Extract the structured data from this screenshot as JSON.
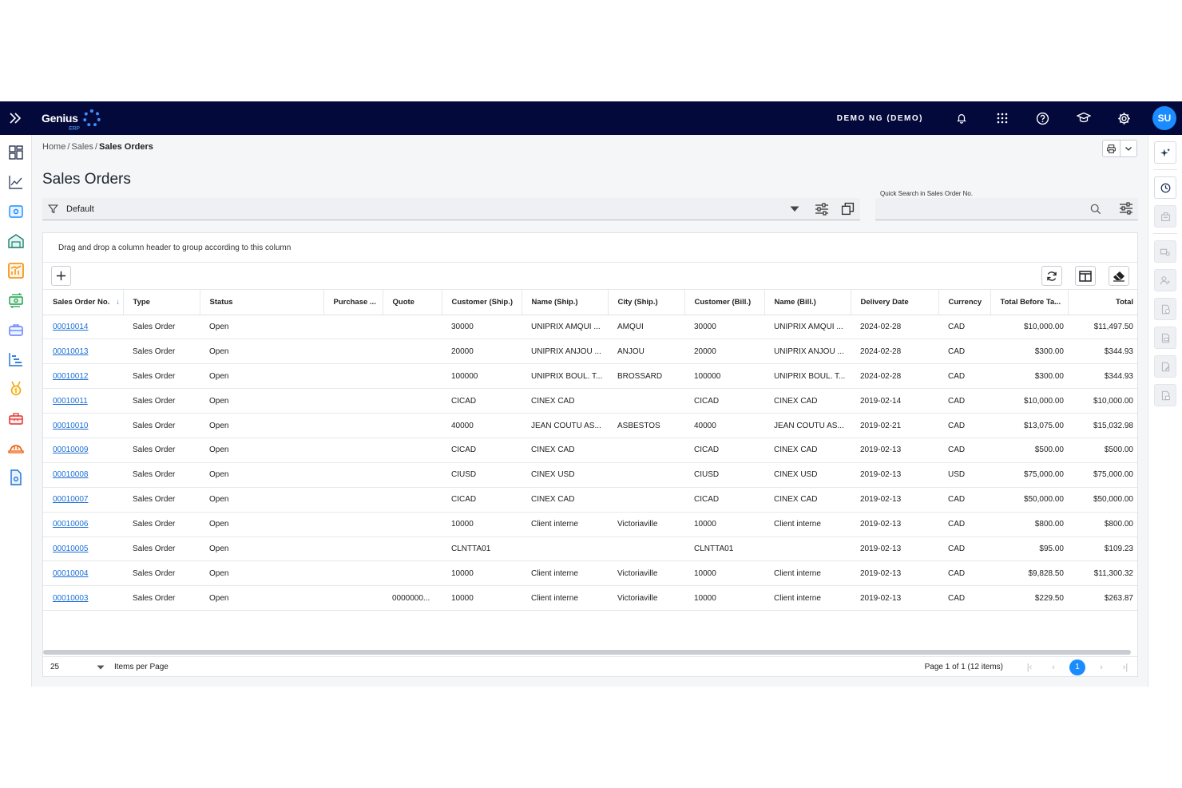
{
  "header": {
    "logo_text": "Genius",
    "logo_sub": "ERP",
    "company": "DEMO NG (DEMO)",
    "avatar_initials": "SU"
  },
  "breadcrumb": {
    "home": "Home",
    "sep1": "/",
    "sales": "Sales",
    "sep2": "/",
    "current": "Sales Orders"
  },
  "page_title": "Sales Orders",
  "filter": {
    "value": "Default"
  },
  "quick_search": {
    "label": "Quick Search in Sales Order No.",
    "value": ""
  },
  "grid": {
    "group_hint": "Drag and drop a column header to group according to this column",
    "columns": [
      "Sales Order No.",
      "Type",
      "Status",
      "Purchase ...",
      "Quote",
      "Customer (Ship.)",
      "Name (Ship.)",
      "City (Ship.)",
      "Customer (Bill.)",
      "Name (Bill.)",
      "Delivery Date",
      "Currency",
      "Total Before Ta...",
      "Total"
    ],
    "rows": [
      [
        "00010014",
        "Sales Order",
        "Open",
        "",
        "",
        "30000",
        "UNIPRIX AMQUI ...",
        "AMQUI",
        "30000",
        "UNIPRIX AMQUI ...",
        "2024-02-28",
        "CAD",
        "$10,000.00",
        "$11,497.50"
      ],
      [
        "00010013",
        "Sales Order",
        "Open",
        "",
        "",
        "20000",
        "UNIPRIX ANJOU ...",
        "ANJOU",
        "20000",
        "UNIPRIX ANJOU ...",
        "2024-02-28",
        "CAD",
        "$300.00",
        "$344.93"
      ],
      [
        "00010012",
        "Sales Order",
        "Open",
        "",
        "",
        "100000",
        "UNIPRIX BOUL. T...",
        "BROSSARD",
        "100000",
        "UNIPRIX BOUL. T...",
        "2024-02-28",
        "CAD",
        "$300.00",
        "$344.93"
      ],
      [
        "00010011",
        "Sales Order",
        "Open",
        "",
        "",
        "CICAD",
        "CINEX CAD",
        "",
        "CICAD",
        "CINEX CAD",
        "2019-02-14",
        "CAD",
        "$10,000.00",
        "$10,000.00"
      ],
      [
        "00010010",
        "Sales Order",
        "Open",
        "",
        "",
        "40000",
        "JEAN COUTU AS...",
        "ASBESTOS",
        "40000",
        "JEAN COUTU AS...",
        "2019-02-21",
        "CAD",
        "$13,075.00",
        "$15,032.98"
      ],
      [
        "00010009",
        "Sales Order",
        "Open",
        "",
        "",
        "CICAD",
        "CINEX CAD",
        "",
        "CICAD",
        "CINEX CAD",
        "2019-02-13",
        "CAD",
        "$500.00",
        "$500.00"
      ],
      [
        "00010008",
        "Sales Order",
        "Open",
        "",
        "",
        "CIUSD",
        "CINEX USD",
        "",
        "CIUSD",
        "CINEX USD",
        "2019-02-13",
        "USD",
        "$75,000.00",
        "$75,000.00"
      ],
      [
        "00010007",
        "Sales Order",
        "Open",
        "",
        "",
        "CICAD",
        "CINEX CAD",
        "",
        "CICAD",
        "CINEX CAD",
        "2019-02-13",
        "CAD",
        "$50,000.00",
        "$50,000.00"
      ],
      [
        "00010006",
        "Sales Order",
        "Open",
        "",
        "",
        "10000",
        "Client interne",
        "Victoriaville",
        "10000",
        "Client interne",
        "2019-02-13",
        "CAD",
        "$800.00",
        "$800.00"
      ],
      [
        "00010005",
        "Sales Order",
        "Open",
        "",
        "",
        "CLNTTA01",
        "",
        "",
        "CLNTTA01",
        "",
        "2019-02-13",
        "CAD",
        "$95.00",
        "$109.23"
      ],
      [
        "00010004",
        "Sales Order",
        "Open",
        "",
        "",
        "10000",
        "Client interne",
        "Victoriaville",
        "10000",
        "Client interne",
        "2019-02-13",
        "CAD",
        "$9,828.50",
        "$11,300.32"
      ],
      [
        "00010003",
        "Sales Order",
        "Open",
        "",
        "0000000...",
        "10000",
        "Client interne",
        "Victoriaville",
        "10000",
        "Client interne",
        "2019-02-13",
        "CAD",
        "$229.50",
        "$263.87"
      ]
    ]
  },
  "pager": {
    "page_size": "25",
    "items_per_page_label": "Items per Page",
    "info": "Page 1 of 1 (12 items)",
    "current_page": "1"
  },
  "colors": {
    "topbar": "#04093b",
    "accent": "#1a8cff",
    "link": "#1a6fd6"
  }
}
